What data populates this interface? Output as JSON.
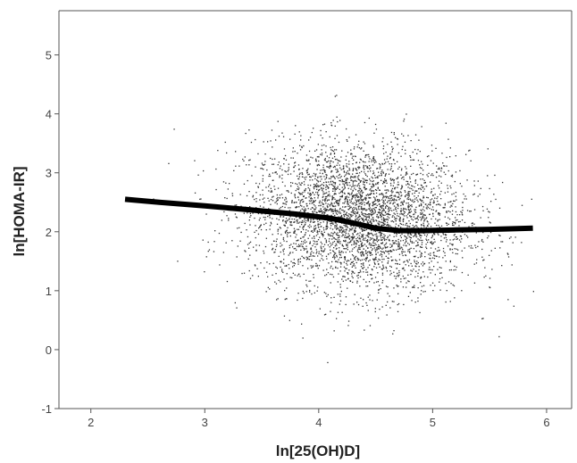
{
  "chart_data": {
    "type": "scatter",
    "title": "",
    "xlabel": "ln[25(OH)D]",
    "ylabel": "ln[HOMA-IR]",
    "xlim": [
      1.72,
      6.22
    ],
    "ylim": [
      -1,
      5.75
    ],
    "x_ticks": [
      2,
      3,
      4,
      5,
      6
    ],
    "y_ticks": [
      -1,
      0,
      1,
      2,
      3,
      4,
      5
    ],
    "grid": false,
    "legend": "none",
    "colors": {
      "points": "#333333",
      "fit_line": "#000000",
      "axis": "#555555"
    },
    "scatter_summary": {
      "n_points_approx": 4000,
      "x_center": 4.35,
      "x_sd": 0.48,
      "y_center": 2.25,
      "y_sd": 0.62,
      "x_range": [
        2.3,
        5.9
      ],
      "y_range": [
        -0.35,
        4.4
      ]
    },
    "fit_line": {
      "name": "",
      "x": [
        2.3,
        2.6,
        3.0,
        3.4,
        3.8,
        4.1,
        4.3,
        4.5,
        4.7,
        4.9,
        5.2,
        5.5,
        5.88
      ],
      "y": [
        2.55,
        2.5,
        2.44,
        2.37,
        2.3,
        2.23,
        2.15,
        2.06,
        2.02,
        2.02,
        2.03,
        2.04,
        2.06
      ]
    }
  }
}
